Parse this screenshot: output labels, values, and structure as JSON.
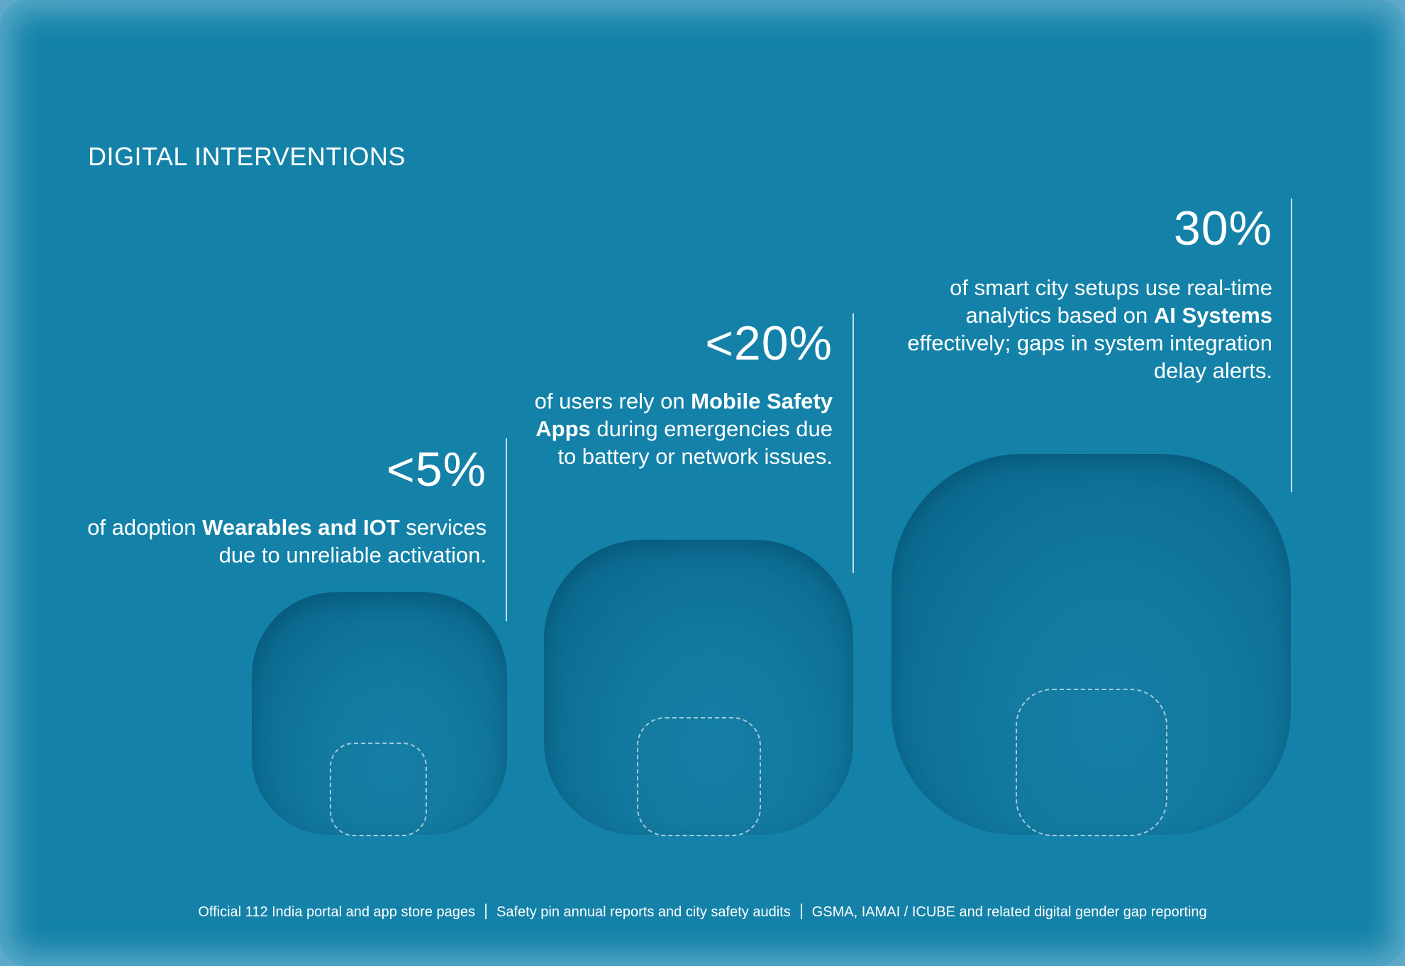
{
  "title": "DIGITAL INTERVENTIONS",
  "stats": [
    {
      "value": "<5%",
      "desc_pre": "of adoption ",
      "desc_bold": "Wearables and IOT",
      "desc_post": " services due to unreliable activation."
    },
    {
      "value": "<20%",
      "desc_pre": "of users rely on ",
      "desc_bold": "Mobile Safety Apps",
      "desc_post": " during emergencies due to battery or network issues."
    },
    {
      "value": "30%",
      "desc_pre": "of smart city setups use real-time analytics based on ",
      "desc_bold": "AI Systems",
      "desc_post": " effectively; gaps in system integration delay alerts."
    }
  ],
  "sources": [
    "Official 112 India portal and app store pages",
    "Safety pin annual reports and city safety audits",
    "GSMA, IAMAI / ICUBE and related digital gender gap reporting"
  ]
}
